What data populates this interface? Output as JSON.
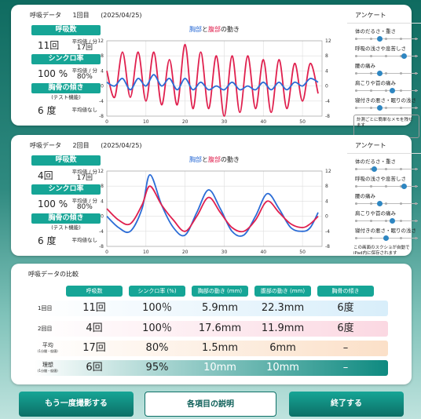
{
  "session1": {
    "label": "呼吸データ",
    "round": "1回目",
    "date": "(2025/04/25)",
    "breath_label": "呼吸数",
    "breath_value": "11回",
    "avg_label": "平均値 / 分",
    "breath_avg": "17回",
    "sync_label": "シンクロ率",
    "sync_value": "100 %",
    "sync_avg": "80%",
    "tilt_label": "胸骨の傾き",
    "tilt_sub": "(テスト機能)",
    "tilt_value": "6 度",
    "tilt_note": "平均値なし"
  },
  "session2": {
    "label": "呼吸データ",
    "round": "2回目",
    "date": "(2025/04/25)",
    "breath_label": "呼吸数",
    "breath_value": "4回",
    "avg_label": "平均値 / 分",
    "breath_avg": "17回",
    "sync_label": "シンクロ率",
    "sync_value": "100 %",
    "sync_avg": "80%",
    "tilt_label": "胸骨の傾き",
    "tilt_sub": "(テスト機能)",
    "tilt_value": "6 度",
    "tilt_note": "平均値なし"
  },
  "chart_title": {
    "chest": "胸部",
    "and": "と",
    "belly": "腹部",
    "suffix": "の動き"
  },
  "survey": {
    "title": "アンケート",
    "items": [
      {
        "label": "体のだるさ・重さ",
        "level": 0.4
      },
      {
        "label": "呼吸の浅さや息苦しさ",
        "level": 0.8
      },
      {
        "label": "腰の痛み",
        "level": 0.4
      },
      {
        "label": "肩こりや首の痛み",
        "level": 0.6
      },
      {
        "label": "寝付きの悪さ・眠りの浅さ",
        "level": 0.4
      }
    ],
    "items2_levels": [
      0.3,
      0.8,
      0.4,
      0.6,
      0.5
    ],
    "memo1": "計測ごとに簡単なメモを残せます",
    "memo2": "この画面のスクショが自動で iPad内に保存されます"
  },
  "comparison": {
    "title": "呼吸データの比較",
    "headers": [
      "呼吸数",
      "シンクロ率 (%)",
      "胸部の動き (mm)",
      "腹部の動き (mm)",
      "胸骨の傾き"
    ],
    "rows": [
      {
        "label": "1回目",
        "sub": "",
        "cells": [
          "11回",
          "100％",
          "5.9mm",
          "22.3mm",
          "6度"
        ]
      },
      {
        "label": "2回目",
        "sub": "",
        "cells": [
          "4回",
          "100％",
          "17.6mm",
          "11.9mm",
          "6度"
        ]
      },
      {
        "label": "平均",
        "sub": "(1分間・仮値)",
        "cells": [
          "17回",
          "80%",
          "1.5mm",
          "6mm",
          "–"
        ]
      },
      {
        "label": "理想",
        "sub": "(1分間・仮値)",
        "cells": [
          "6回",
          "95%",
          "10mm",
          "10mm",
          "–"
        ]
      }
    ]
  },
  "buttons": {
    "retake": "もう一度撮影する",
    "explain": "各項目の説明",
    "finish": "終了する"
  },
  "chart_data": [
    {
      "type": "line",
      "ylim": [
        -8,
        12
      ],
      "xlim": [
        0,
        55
      ],
      "xticks": [
        0,
        10,
        20,
        30,
        40,
        50
      ],
      "yticks": [
        -8,
        -4,
        0,
        4,
        8,
        12
      ],
      "series": [
        {
          "color": "#e0204e",
          "x": [
            0,
            2,
            4,
            6,
            8,
            10,
            12,
            14,
            16,
            18,
            20,
            22,
            24,
            26,
            28,
            30,
            32,
            34,
            36,
            38,
            40,
            42,
            44,
            46,
            48,
            50,
            52,
            54
          ],
          "y": [
            4,
            -3,
            9,
            -3,
            9,
            -4,
            9,
            -5,
            7,
            -5,
            11,
            -6,
            9,
            -6,
            8,
            -8,
            8,
            -7,
            8,
            -6,
            7,
            -7,
            7,
            -6,
            6,
            -4,
            6,
            -2
          ]
        },
        {
          "color": "#2b6cd6",
          "x": [
            0,
            2,
            4,
            6,
            8,
            10,
            12,
            14,
            16,
            18,
            20,
            22,
            24,
            26,
            28,
            30,
            32,
            34,
            36,
            38,
            40,
            42,
            44,
            46,
            48,
            50,
            52,
            54
          ],
          "y": [
            1,
            0,
            2,
            -1,
            2,
            0,
            3,
            0,
            2,
            -1,
            2,
            -1,
            1,
            -1,
            0,
            -1,
            1,
            -1,
            0,
            -1,
            1,
            -1,
            1,
            -1,
            1,
            0,
            2,
            1
          ]
        }
      ]
    },
    {
      "type": "line",
      "ylim": [
        -8,
        12
      ],
      "xlim": [
        0,
        55
      ],
      "xticks": [
        0,
        10,
        20,
        30,
        40,
        50
      ],
      "yticks": [
        -8,
        -4,
        0,
        4,
        8,
        12
      ],
      "series": [
        {
          "color": "#2b6cd6",
          "x": [
            0,
            3,
            6,
            9,
            11,
            14,
            17,
            20,
            23,
            26,
            29,
            32,
            35,
            38,
            41,
            44,
            47,
            50,
            52,
            54
          ],
          "y": [
            0,
            -3,
            -4,
            2,
            11,
            3,
            -3,
            -5,
            1,
            7,
            2,
            -4,
            -5,
            0,
            6,
            2,
            -3,
            -4,
            -3,
            1
          ]
        },
        {
          "color": "#e0204e",
          "x": [
            0,
            3,
            6,
            9,
            11,
            14,
            17,
            20,
            23,
            26,
            29,
            32,
            35,
            38,
            41,
            44,
            47,
            50,
            52,
            54
          ],
          "y": [
            2,
            -1,
            -2,
            3,
            8,
            3,
            -1,
            -4,
            0,
            5,
            1,
            -3,
            -4,
            -1,
            4,
            1,
            -2,
            -3,
            -2,
            0
          ]
        }
      ]
    }
  ]
}
